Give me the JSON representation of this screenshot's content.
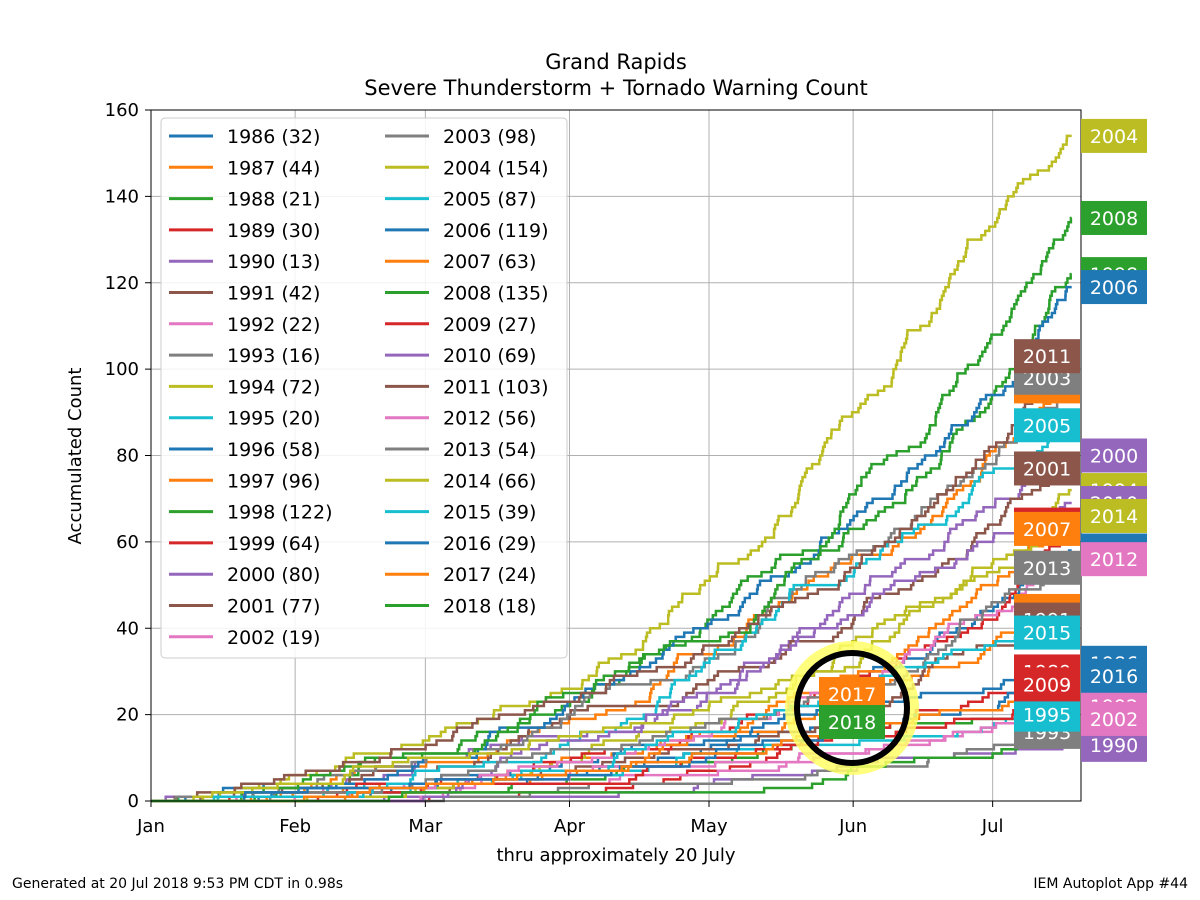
{
  "chart_data": {
    "type": "line",
    "title": "Grand Rapids",
    "subtitle": "Severe Thunderstorm + Tornado Warning Count",
    "xlabel": "thru approximately 20 July",
    "ylabel": "Accumulated Count",
    "xlim": [
      1,
      201
    ],
    "ylim": [
      0,
      160
    ],
    "x_ticks": [
      {
        "label": "Jan",
        "day": 1
      },
      {
        "label": "Feb",
        "day": 32
      },
      {
        "label": "Mar",
        "day": 60
      },
      {
        "label": "Apr",
        "day": 91
      },
      {
        "label": "May",
        "day": 121
      },
      {
        "label": "Jun",
        "day": 152
      },
      {
        "label": "Jul",
        "day": 182
      }
    ],
    "y_ticks": [
      0,
      20,
      40,
      60,
      80,
      100,
      120,
      140,
      160
    ],
    "grid": true,
    "legend_position": "upper-left",
    "legend_columns": 2,
    "highlight": {
      "years": [
        "2017",
        "2018"
      ],
      "ring_color": "#000000",
      "glow_color": "#ffff66"
    },
    "series": [
      {
        "name": "1986 (32)",
        "year": "1986",
        "total": 32,
        "color": "#1f77b4",
        "label_y": 32
      },
      {
        "name": "1987 (44)",
        "year": "1987",
        "total": 44,
        "color": "#ff7f0e",
        "label_y": 44
      },
      {
        "name": "1988 (21)",
        "year": "1988",
        "total": 21,
        "color": "#2ca02c",
        "label_y": 21
      },
      {
        "name": "1989 (30)",
        "year": "1989",
        "total": 30,
        "color": "#d62728",
        "label_y": 30
      },
      {
        "name": "1990 (13)",
        "year": "1990",
        "total": 13,
        "color": "#9467bd",
        "label_y": 13
      },
      {
        "name": "1991 (42)",
        "year": "1991",
        "total": 42,
        "color": "#8c564b",
        "label_y": 42
      },
      {
        "name": "1992 (22)",
        "year": "1992",
        "total": 22,
        "color": "#e377c2",
        "label_y": 22
      },
      {
        "name": "1993 (16)",
        "year": "1993",
        "total": 16,
        "color": "#7f7f7f",
        "label_y": 16
      },
      {
        "name": "1994 (72)",
        "year": "1994",
        "total": 72,
        "color": "#bcbd22",
        "label_y": 72
      },
      {
        "name": "1995 (20)",
        "year": "1995",
        "total": 20,
        "color": "#17becf",
        "label_y": 20
      },
      {
        "name": "1996 (58)",
        "year": "1996",
        "total": 58,
        "color": "#1f77b4",
        "label_y": 58
      },
      {
        "name": "1997 (96)",
        "year": "1997",
        "total": 96,
        "color": "#ff7f0e",
        "label_y": 96
      },
      {
        "name": "1998 (122)",
        "year": "1998",
        "total": 122,
        "color": "#2ca02c",
        "label_y": 122
      },
      {
        "name": "1999 (64)",
        "year": "1999",
        "total": 64,
        "color": "#d62728",
        "label_y": 64
      },
      {
        "name": "2000 (80)",
        "year": "2000",
        "total": 80,
        "color": "#9467bd",
        "label_y": 80
      },
      {
        "name": "2001 (77)",
        "year": "2001",
        "total": 77,
        "color": "#8c564b",
        "label_y": 77
      },
      {
        "name": "2002 (19)",
        "year": "2002",
        "total": 19,
        "color": "#e377c2",
        "label_y": 19
      },
      {
        "name": "2003 (98)",
        "year": "2003",
        "total": 98,
        "color": "#7f7f7f",
        "label_y": 98
      },
      {
        "name": "2004 (154)",
        "year": "2004",
        "total": 154,
        "color": "#bcbd22",
        "label_y": 154
      },
      {
        "name": "2005 (87)",
        "year": "2005",
        "total": 87,
        "color": "#17becf",
        "label_y": 87
      },
      {
        "name": "2006 (119)",
        "year": "2006",
        "total": 119,
        "color": "#1f77b4",
        "label_y": 119
      },
      {
        "name": "2007 (63)",
        "year": "2007",
        "total": 63,
        "color": "#ff7f0e",
        "label_y": 63
      },
      {
        "name": "2008 (135)",
        "year": "2008",
        "total": 135,
        "color": "#2ca02c",
        "label_y": 135
      },
      {
        "name": "2009 (27)",
        "year": "2009",
        "total": 27,
        "color": "#d62728",
        "label_y": 27
      },
      {
        "name": "2010 (69)",
        "year": "2010",
        "total": 69,
        "color": "#9467bd",
        "label_y": 69
      },
      {
        "name": "2011 (103)",
        "year": "2011",
        "total": 103,
        "color": "#8c564b",
        "label_y": 103
      },
      {
        "name": "2012 (56)",
        "year": "2012",
        "total": 56,
        "color": "#e377c2",
        "label_y": 56
      },
      {
        "name": "2013 (54)",
        "year": "2013",
        "total": 54,
        "color": "#7f7f7f",
        "label_y": 54
      },
      {
        "name": "2014 (66)",
        "year": "2014",
        "total": 66,
        "color": "#bcbd22",
        "label_y": 66
      },
      {
        "name": "2015 (39)",
        "year": "2015",
        "total": 39,
        "color": "#17becf",
        "label_y": 39
      },
      {
        "name": "2016 (29)",
        "year": "2016",
        "total": 29,
        "color": "#1f77b4",
        "label_y": 29
      },
      {
        "name": "2017 (24)",
        "year": "2017",
        "total": 24,
        "color": "#ff7f0e",
        "label_y": 24
      },
      {
        "name": "2018 (18)",
        "year": "2018",
        "total": 18,
        "color": "#2ca02c",
        "label_y": 18
      }
    ]
  },
  "footer": {
    "generated": "Generated at 20 Jul 2018 9:53 PM CDT in 0.98s",
    "app": "IEM Autoplot App #44"
  }
}
